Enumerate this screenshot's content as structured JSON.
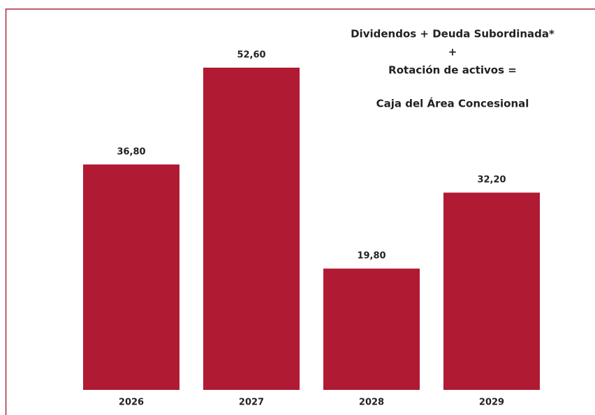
{
  "chart_data": {
    "type": "bar",
    "title": [
      "Dividendos + Deuda Subordinada*",
      "+",
      "Rotación de activos =",
      "Caja del Área Concesional"
    ],
    "categories": [
      "2026",
      "2027",
      "2028",
      "2029"
    ],
    "values": [
      36.8,
      52.6,
      19.8,
      32.2
    ],
    "value_labels": [
      "36,80",
      "52,60",
      "19,80",
      "32,20"
    ],
    "color": "#b11a33"
  }
}
